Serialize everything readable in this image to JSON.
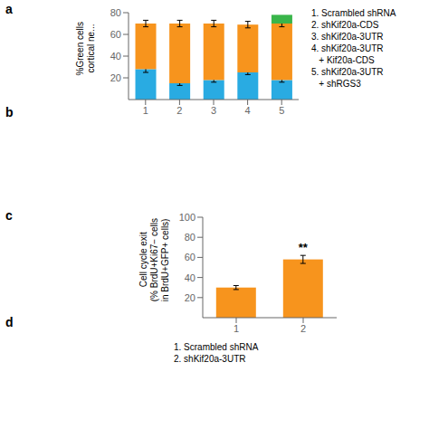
{
  "annotations": [
    {
      "text": "a"
    },
    {
      "text": "b"
    },
    {
      "text": "c"
    },
    {
      "text": "d"
    }
  ],
  "chart_data": [
    {
      "type": "bar",
      "stacked": true,
      "ylabel": "%Green cells\ncortical ne...",
      "categories": [
        "1",
        "2",
        "3",
        "4",
        "5"
      ],
      "series": [
        {
          "color": "#29ABE2",
          "values": [
            28,
            15,
            18,
            25,
            18
          ],
          "errors": [
            3,
            2,
            2,
            2,
            2
          ]
        },
        {
          "color": "#F7941D",
          "values": [
            42,
            55,
            52,
            44,
            52
          ],
          "errors": [
            3,
            3,
            3,
            3,
            3
          ]
        },
        {
          "color": "#39B54A",
          "values": [
            0,
            0,
            0,
            0,
            8
          ]
        }
      ],
      "ylim": [
        0,
        80
      ],
      "yticks": [
        20,
        40,
        60,
        80
      ],
      "annotations": [
        {
          "text": "1. Scrambled shRNA"
        },
        {
          "text": "2. shKif20a-CDS"
        },
        {
          "text": "3. shKif20a-3UTR"
        },
        {
          "text": "4. shKif20a-3UTR"
        },
        {
          "text": "   + Kif20a-CDS"
        },
        {
          "text": "5. shKif20a-3UTR"
        },
        {
          "text": "   + shRGS3"
        }
      ]
    },
    {
      "type": "bar",
      "ylabel": "Cell cycle exit\n(% BrdU+Ki67− cells\nin BrdU+GFP+ cells)",
      "categories": [
        "1",
        "2"
      ],
      "values": [
        30,
        58
      ],
      "errors": [
        2,
        4
      ],
      "color": "#F7941D",
      "ylim": [
        0,
        100
      ],
      "yticks": [
        20,
        40,
        60,
        80,
        100
      ],
      "annotations": [
        {
          "text": "**",
          "category": "2"
        },
        {
          "text": "1. Scrambled shRNA"
        },
        {
          "text": "2. shKif20a-3UTR"
        }
      ]
    }
  ]
}
